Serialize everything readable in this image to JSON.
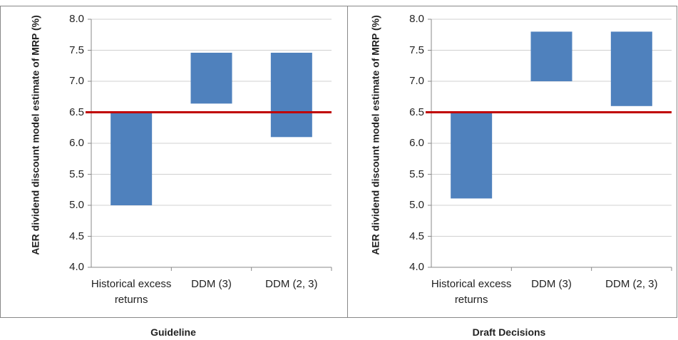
{
  "chart_data": [
    {
      "type": "bar",
      "xlabel": "Guideline",
      "ylabel": "AER dividend discount model estimate of MRP (%)",
      "categories": [
        "Historical excess returns",
        "DDM (3)",
        "DDM (2, 3)"
      ],
      "lows": [
        5.0,
        6.64,
        6.1
      ],
      "highs": [
        6.5,
        7.46,
        7.46
      ],
      "color": "#4f81bd",
      "reference_line": {
        "value": 6.5,
        "color": "#c00000"
      },
      "ylim": [
        4,
        8
      ],
      "yticks": [
        {
          "value": 4,
          "label": "4.0"
        },
        4.5,
        {
          "value": 5,
          "label": "5.0"
        },
        5.5,
        {
          "value": 6,
          "label": "6.0"
        },
        6.5,
        {
          "value": 7,
          "label": "7.0"
        },
        7.5,
        {
          "value": 8,
          "label": "8.0"
        }
      ],
      "grid": true
    },
    {
      "type": "bar",
      "xlabel": "Draft Decisions",
      "ylabel": "AER dividend discount model estimate of MRP (%)",
      "categories": [
        "Historical excess returns",
        "DDM (3)",
        "DDM (2, 3)"
      ],
      "lows": [
        5.11,
        7.0,
        6.6
      ],
      "highs": [
        6.5,
        7.8,
        7.8
      ],
      "color": "#4f81bd",
      "reference_line": {
        "value": 6.5,
        "color": "#c00000"
      },
      "ylim": [
        4,
        8
      ],
      "yticks": [
        {
          "value": 4,
          "label": "4.0"
        },
        4.5,
        {
          "value": 5,
          "label": "5.0"
        },
        5.5,
        {
          "value": 6,
          "label": "6.0"
        },
        6.5,
        {
          "value": 7,
          "label": "7.0"
        },
        7.5,
        {
          "value": 8,
          "label": "8.0"
        }
      ],
      "grid": true
    }
  ]
}
